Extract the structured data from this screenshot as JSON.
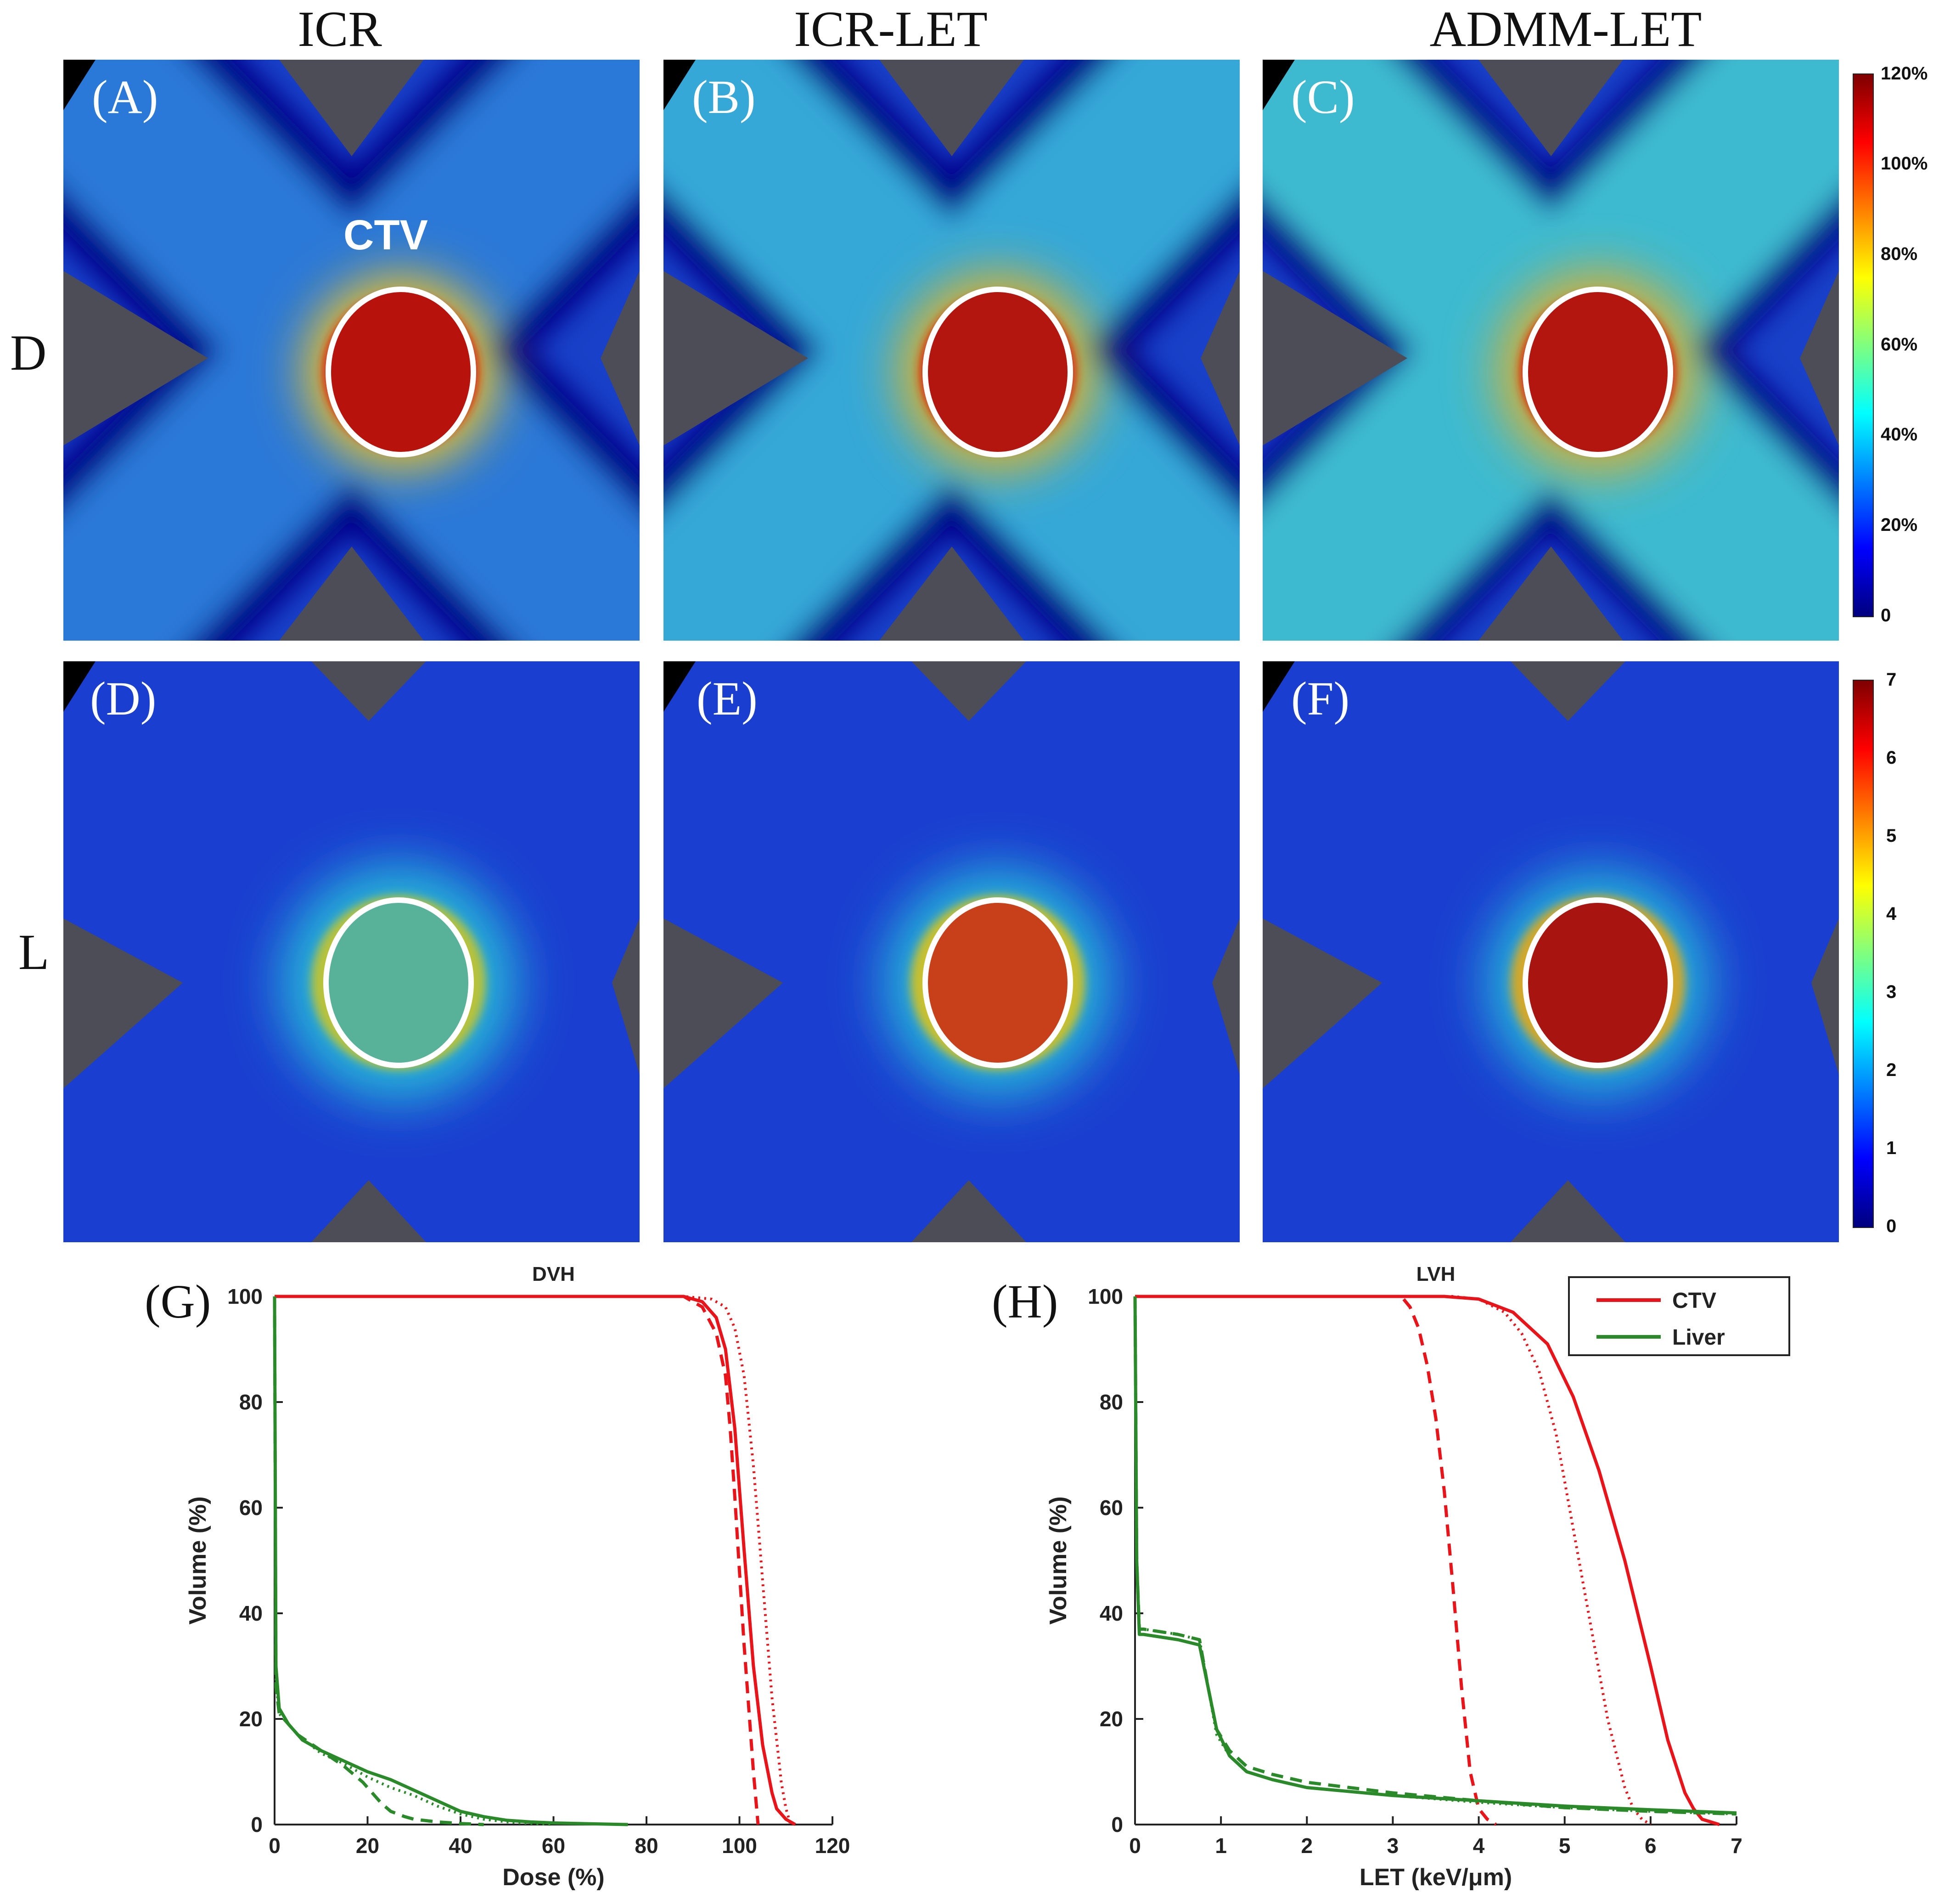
{
  "columns": [
    "ICR",
    "ICR-LET",
    "ADMM-LET"
  ],
  "rows": [
    "D",
    "L"
  ],
  "panels": {
    "dose": [
      {
        "label": "(A)",
        "method": "ICR",
        "ctv_label": "CTV",
        "ctv_level": 1.0
      },
      {
        "label": "(B)",
        "method": "ICR-LET",
        "ctv_level": 1.0
      },
      {
        "label": "(C)",
        "method": "ADMM-LET",
        "ctv_level": 1.0
      }
    ],
    "let": [
      {
        "label": "(D)",
        "method": "ICR",
        "ctv_level": 0.45
      },
      {
        "label": "(E)",
        "method": "ICR-LET",
        "ctv_level": 0.8
      },
      {
        "label": "(F)",
        "method": "ADMM-LET",
        "ctv_level": 0.92
      }
    ]
  },
  "colorbars": {
    "dose": {
      "ticks": [
        "0",
        "20%",
        "40%",
        "60%",
        "80%",
        "100%",
        "120%"
      ],
      "range": [
        0,
        120
      ]
    },
    "let": {
      "ticks": [
        "0",
        "1",
        "2",
        "3",
        "4",
        "5",
        "6",
        "7"
      ],
      "range": [
        0,
        7
      ]
    }
  },
  "colors": {
    "ctv": "#e8141a",
    "liver": "#2a8a2a",
    "contour": "#ffffff"
  },
  "chart_data": [
    {
      "panel_label": "(G)",
      "type": "line",
      "title": "DVH",
      "xlabel": "Dose (%)",
      "ylabel": "Volume (%)",
      "xlim": [
        0,
        120
      ],
      "ylim": [
        0,
        100
      ],
      "xticks": [
        0,
        20,
        40,
        60,
        80,
        100,
        120
      ],
      "yticks": [
        0,
        20,
        40,
        60,
        80,
        100
      ],
      "series": [
        {
          "name": "CTV ICR",
          "structure": "CTV",
          "style": "solid",
          "x": [
            0,
            88,
            92,
            95,
            97,
            99,
            101,
            103,
            105,
            107,
            108,
            110,
            112
          ],
          "y": [
            100,
            100,
            99,
            96,
            90,
            75,
            52,
            30,
            15,
            6,
            3,
            1,
            0
          ]
        },
        {
          "name": "CTV ICR-LET",
          "structure": "CTV",
          "style": "dashed",
          "x": [
            0,
            88,
            92,
            95,
            97,
            98,
            99,
            100,
            101,
            102,
            103,
            104
          ],
          "y": [
            100,
            100,
            98,
            93,
            85,
            75,
            62,
            48,
            34,
            22,
            10,
            0
          ]
        },
        {
          "name": "CTV ADMM-LET",
          "structure": "CTV",
          "style": "dotted",
          "x": [
            0,
            88,
            94,
            97,
            99,
            101,
            103,
            105,
            107,
            109,
            110,
            111
          ],
          "y": [
            100,
            100,
            99.5,
            98,
            94,
            85,
            68,
            46,
            24,
            8,
            3,
            0
          ]
        },
        {
          "name": "Liver ICR",
          "structure": "Liver",
          "style": "solid",
          "x": [
            0,
            0.3,
            1,
            3,
            6,
            10,
            15,
            20,
            25,
            30,
            35,
            40,
            45,
            50,
            55,
            60,
            70,
            76
          ],
          "y": [
            100,
            30,
            22,
            19,
            16,
            14,
            12,
            10,
            8.5,
            6.5,
            4.5,
            2.5,
            1.5,
            0.8,
            0.5,
            0.3,
            0.1,
            0
          ]
        },
        {
          "name": "Liver ICR-LET",
          "structure": "Liver",
          "style": "dashed",
          "x": [
            0,
            0.3,
            1,
            5,
            10,
            15,
            19,
            21,
            23,
            25,
            28,
            30,
            35,
            40,
            45
          ],
          "y": [
            100,
            26,
            21,
            17,
            14,
            11,
            8,
            6,
            4,
            2.5,
            1.5,
            1,
            0.5,
            0.2,
            0
          ]
        },
        {
          "name": "Liver ADMM-LET",
          "structure": "Liver",
          "style": "dotted",
          "x": [
            0,
            0.3,
            1,
            5,
            10,
            15,
            20,
            25,
            30,
            35,
            40,
            45,
            50,
            55,
            60
          ],
          "y": [
            100,
            27,
            21,
            17,
            13.5,
            11.5,
            9,
            7,
            5.5,
            3.5,
            2,
            1,
            0.5,
            0.2,
            0
          ]
        }
      ]
    },
    {
      "panel_label": "(H)",
      "type": "line",
      "title": "LVH",
      "xlabel": "LET (keV/μm)",
      "ylabel": "Volume (%)",
      "xlim": [
        0,
        7
      ],
      "ylim": [
        0,
        100
      ],
      "xticks": [
        0,
        1,
        2,
        3,
        4,
        5,
        6,
        7
      ],
      "yticks": [
        0,
        20,
        40,
        60,
        80,
        100
      ],
      "legend": {
        "entries": [
          "CTV",
          "Liver"
        ],
        "placement": "top-right"
      },
      "series": [
        {
          "name": "CTV ICR",
          "structure": "CTV",
          "style": "dashed",
          "x": [
            0,
            3.1,
            3.2,
            3.3,
            3.4,
            3.5,
            3.6,
            3.7,
            3.8,
            3.9,
            4.0,
            4.1,
            4.2
          ],
          "y": [
            100,
            100,
            98,
            94,
            87,
            77,
            63,
            45,
            26,
            10,
            3,
            1,
            0
          ]
        },
        {
          "name": "CTV ICR-LET",
          "structure": "CTV",
          "style": "dotted",
          "x": [
            0,
            3.7,
            4.0,
            4.3,
            4.5,
            4.7,
            4.9,
            5.1,
            5.3,
            5.5,
            5.7,
            5.8,
            5.9,
            6.0
          ],
          "y": [
            100,
            100,
            99.5,
            97,
            93,
            86,
            74,
            56,
            38,
            20,
            7,
            3,
            1,
            0
          ]
        },
        {
          "name": "CTV ADMM-LET",
          "structure": "CTV",
          "style": "solid",
          "x": [
            0,
            3.6,
            4.0,
            4.4,
            4.8,
            5.1,
            5.4,
            5.7,
            6.0,
            6.2,
            6.4,
            6.5,
            6.6,
            6.8
          ],
          "y": [
            100,
            100,
            99.5,
            97,
            91,
            81,
            67,
            50,
            30,
            16,
            6,
            3,
            1,
            0
          ]
        },
        {
          "name": "Liver ICR",
          "structure": "Liver",
          "style": "solid",
          "x": [
            0,
            0.02,
            0.05,
            0.1,
            0.5,
            0.75,
            0.85,
            0.95,
            1.1,
            1.3,
            1.6,
            2,
            3,
            4,
            5,
            6,
            7
          ],
          "y": [
            100,
            50,
            36,
            36,
            35,
            34,
            26,
            18,
            13,
            10,
            8.5,
            7,
            5.5,
            4.5,
            3.5,
            2.8,
            2.2
          ]
        },
        {
          "name": "Liver ICR-LET",
          "structure": "Liver",
          "style": "dashed",
          "x": [
            0,
            0.02,
            0.05,
            0.1,
            0.5,
            0.75,
            0.85,
            0.95,
            1.1,
            1.3,
            1.6,
            2,
            3,
            4,
            5,
            6,
            7
          ],
          "y": [
            100,
            50,
            37,
            37,
            36,
            35,
            26,
            18,
            14,
            11,
            9.5,
            8,
            6,
            4.5,
            3.2,
            2.5,
            2
          ]
        },
        {
          "name": "Liver ADMM-LET",
          "structure": "Liver",
          "style": "dotted",
          "x": [
            0,
            0.02,
            0.05,
            0.1,
            0.5,
            0.75,
            0.85,
            0.95,
            1.1,
            1.3,
            1.6,
            2,
            3,
            4,
            5,
            6,
            7
          ],
          "y": [
            100,
            50,
            37,
            37,
            36,
            35,
            26,
            17,
            13,
            10,
            8.5,
            7,
            5.5,
            4.2,
            3.2,
            2.5,
            2
          ]
        }
      ]
    }
  ]
}
